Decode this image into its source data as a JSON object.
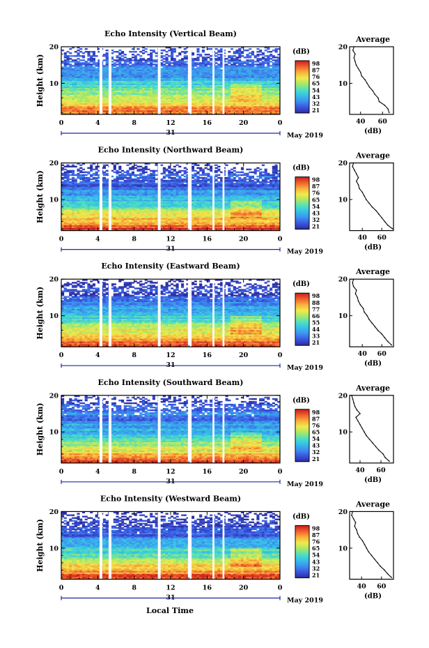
{
  "page": {
    "background": "#ffffff"
  },
  "figure": {
    "x_axis_label": "Local Time",
    "date_label": "31",
    "date_suffix": "May 2019"
  },
  "colormap": [
    "#2b2e9e",
    "#3b55e0",
    "#3f8ff0",
    "#36c0e8",
    "#4fe0c0",
    "#a8e868",
    "#f0ea4c",
    "#f8b03c",
    "#f0602c",
    "#c81e1e"
  ],
  "chart_data": [
    {
      "type": "heatmap",
      "title": "Echo Intensity (Vertical Beam)",
      "ylabel": "Height (km)",
      "x_ticks": [
        "0",
        "4",
        "8",
        "12",
        "16",
        "20",
        "0"
      ],
      "xlim": [
        0,
        24
      ],
      "ylim": [
        1.5,
        20
      ],
      "y_ticks": [
        "10",
        "20"
      ],
      "colorbar_label": "(dB)",
      "colorbar_ticks": [
        "98",
        "87",
        "76",
        "65",
        "54",
        "43",
        "32",
        "21"
      ],
      "clim": [
        21,
        98
      ],
      "gaps_hours": [
        [
          4.2,
          4.5
        ],
        [
          5.2,
          5.5
        ],
        [
          10.6,
          10.9
        ],
        [
          13.9,
          14.3
        ],
        [
          16.6,
          16.8
        ],
        [
          17.7,
          17.9
        ]
      ],
      "profile": {
        "title": "Average",
        "xlabel": "(dB)",
        "x_ticks": [
          "40",
          "60"
        ],
        "xlim": [
          30,
          70
        ],
        "height_km": [
          2,
          3,
          4,
          5,
          6,
          7,
          8,
          9,
          10,
          11,
          12,
          13,
          14,
          15,
          16,
          17,
          18,
          19,
          20
        ],
        "echo_db": [
          66,
          65,
          62,
          57,
          56,
          53,
          51,
          48,
          46,
          44,
          41,
          40,
          38,
          36,
          35,
          34,
          35,
          33,
          34
        ]
      }
    },
    {
      "type": "heatmap",
      "title": "Echo Intensity (Northward Beam)",
      "ylabel": "Height (km)",
      "x_ticks": [
        "0",
        "4",
        "8",
        "12",
        "16",
        "20",
        "0"
      ],
      "xlim": [
        0,
        24
      ],
      "ylim": [
        1.5,
        20
      ],
      "y_ticks": [
        "10",
        "20"
      ],
      "colorbar_label": "(dB)",
      "colorbar_ticks": [
        "98",
        "87",
        "76",
        "65",
        "54",
        "43",
        "32",
        "21"
      ],
      "clim": [
        21,
        98
      ],
      "gaps_hours": [
        [
          4.2,
          4.5
        ],
        [
          5.2,
          5.5
        ],
        [
          10.6,
          10.9
        ],
        [
          13.9,
          14.3
        ],
        [
          16.6,
          16.8
        ],
        [
          17.7,
          17.9
        ]
      ],
      "profile": {
        "title": "Average",
        "xlabel": "(dB)",
        "x_ticks": [
          "40",
          "60"
        ],
        "xlim": [
          27,
          72
        ],
        "height_km": [
          2,
          3,
          4,
          5,
          6,
          7,
          8,
          9,
          10,
          11,
          12,
          13,
          14,
          15,
          16,
          17,
          18,
          19,
          20
        ],
        "echo_db": [
          71,
          66,
          63,
          60,
          57,
          54,
          50,
          47,
          44,
          42,
          40,
          37,
          36,
          34,
          36,
          34,
          32,
          30,
          31
        ]
      }
    },
    {
      "type": "heatmap",
      "title": "Echo Intensity (Eastward Beam)",
      "ylabel": "Height (km)",
      "x_ticks": [
        "0",
        "4",
        "8",
        "12",
        "16",
        "20",
        "0"
      ],
      "xlim": [
        0,
        24
      ],
      "ylim": [
        1.5,
        20
      ],
      "y_ticks": [
        "10",
        "20"
      ],
      "colorbar_label": "(dB)",
      "colorbar_ticks": [
        "98",
        "88",
        "77",
        "66",
        "55",
        "44",
        "33",
        "21"
      ],
      "clim": [
        21,
        98
      ],
      "gaps_hours": [
        [
          4.2,
          4.5
        ],
        [
          5.2,
          5.5
        ],
        [
          10.6,
          10.9
        ],
        [
          13.9,
          14.3
        ],
        [
          16.6,
          16.8
        ],
        [
          17.7,
          17.9
        ]
      ],
      "profile": {
        "title": "Average",
        "xlabel": "(dB)",
        "x_ticks": [
          "40",
          "60"
        ],
        "xlim": [
          27,
          72
        ],
        "height_km": [
          2,
          3,
          4,
          5,
          6,
          7,
          8,
          9,
          10,
          11,
          12,
          13,
          14,
          15,
          16,
          17,
          18,
          19,
          20
        ],
        "echo_db": [
          70,
          66,
          63,
          60,
          56,
          53,
          50,
          47,
          45,
          42,
          41,
          38,
          36,
          35,
          33,
          34,
          31,
          30,
          31
        ]
      }
    },
    {
      "type": "heatmap",
      "title": "Echo Intensity (Southward Beam)",
      "ylabel": "Height (km)",
      "x_ticks": [
        "0",
        "4",
        "8",
        "12",
        "16",
        "20",
        "0"
      ],
      "xlim": [
        0,
        24
      ],
      "ylim": [
        1.5,
        20
      ],
      "y_ticks": [
        "10",
        "20"
      ],
      "colorbar_label": "(dB)",
      "colorbar_ticks": [
        "98",
        "87",
        "76",
        "65",
        "54",
        "43",
        "32",
        "21"
      ],
      "clim": [
        21,
        98
      ],
      "gaps_hours": [
        [
          4.2,
          4.5
        ],
        [
          5.2,
          5.5
        ],
        [
          10.6,
          10.9
        ],
        [
          13.9,
          14.3
        ],
        [
          16.6,
          16.8
        ],
        [
          17.7,
          17.9
        ]
      ],
      "profile": {
        "title": "Average",
        "xlabel": "(dB)",
        "x_ticks": [
          "40",
          "60"
        ],
        "xlim": [
          30,
          72
        ],
        "height_km": [
          2,
          3,
          4,
          5,
          6,
          7,
          8,
          9,
          10,
          11,
          12,
          13,
          14,
          15,
          16,
          17,
          18,
          19,
          20
        ],
        "echo_db": [
          68,
          64,
          62,
          58,
          55,
          52,
          49,
          46,
          44,
          42,
          40,
          38,
          36,
          40,
          37,
          35,
          34,
          33,
          32
        ]
      }
    },
    {
      "type": "heatmap",
      "title": "Echo Intensity (Westward Beam)",
      "ylabel": "Height (km)",
      "x_ticks": [
        "0",
        "4",
        "8",
        "12",
        "16",
        "20",
        "0"
      ],
      "xlim": [
        0,
        24
      ],
      "ylim": [
        1.5,
        20
      ],
      "y_ticks": [
        "10",
        "20"
      ],
      "colorbar_label": "(dB)",
      "colorbar_ticks": [
        "98",
        "87",
        "76",
        "65",
        "54",
        "43",
        "32",
        "21"
      ],
      "clim": [
        21,
        98
      ],
      "gaps_hours": [
        [
          4.2,
          4.5
        ],
        [
          5.2,
          5.5
        ],
        [
          10.6,
          10.9
        ],
        [
          13.9,
          14.3
        ],
        [
          16.6,
          16.8
        ],
        [
          17.7,
          17.9
        ]
      ],
      "profile": {
        "title": "Average",
        "xlabel": "(dB)",
        "x_ticks": [
          "40",
          "60"
        ],
        "xlim": [
          28,
          72
        ],
        "height_km": [
          2,
          3,
          4,
          5,
          6,
          7,
          8,
          9,
          10,
          11,
          12,
          13,
          14,
          15,
          16,
          17,
          18,
          19,
          20
        ],
        "echo_db": [
          70,
          66,
          63,
          59,
          56,
          53,
          50,
          47,
          45,
          43,
          41,
          38,
          36,
          35,
          33,
          34,
          32,
          30,
          31
        ]
      }
    }
  ]
}
